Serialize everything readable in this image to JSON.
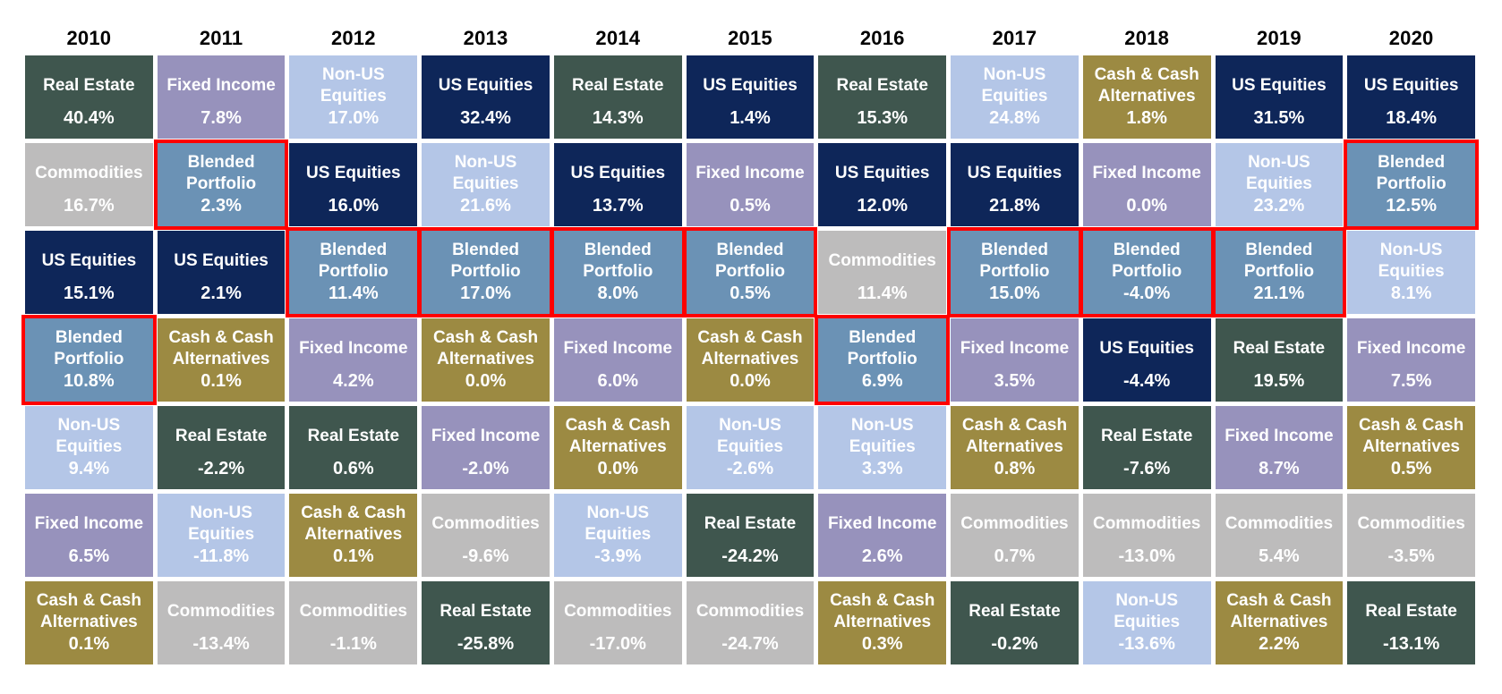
{
  "chart_data": {
    "type": "table",
    "subtype": "asset-class-returns-quilt",
    "title": "",
    "legend_position": "none",
    "grid": "cells-with-white-gaps",
    "highlight_color": "#FF0000",
    "highlight_meaning": "Blended Portfolio cells outlined in red",
    "text_color": "#FFFFFF",
    "year_label_color": "#000000",
    "asset_colors": {
      "real_estate": "#3F564E",
      "fixed_income": "#9792BC",
      "non_us_equities": "#B4C6E7",
      "us_equities": "#0E2659",
      "commodities": "#BDBCBC",
      "cash": "#9C8A42",
      "blended": "#6B92B5"
    },
    "years": [
      "2010",
      "2011",
      "2012",
      "2013",
      "2014",
      "2015",
      "2016",
      "2017",
      "2018",
      "2019",
      "2020"
    ],
    "columns": [
      {
        "year": "2010",
        "cells": [
          {
            "asset": "real_estate",
            "label": "Real Estate",
            "value": "40.4%",
            "highlight": false
          },
          {
            "asset": "commodities",
            "label": "Commodities",
            "value": "16.7%",
            "highlight": false
          },
          {
            "asset": "us_equities",
            "label": "US Equities",
            "value": "15.1%",
            "highlight": false
          },
          {
            "asset": "blended",
            "label": "Blended Portfolio",
            "value": "10.8%",
            "highlight": true
          },
          {
            "asset": "non_us_equities",
            "label": "Non-US Equities",
            "value": "9.4%",
            "highlight": false
          },
          {
            "asset": "fixed_income",
            "label": "Fixed Income",
            "value": "6.5%",
            "highlight": false
          },
          {
            "asset": "cash",
            "label": "Cash & Cash Alternatives",
            "value": "0.1%",
            "highlight": false
          }
        ]
      },
      {
        "year": "2011",
        "cells": [
          {
            "asset": "fixed_income",
            "label": "Fixed Income",
            "value": "7.8%",
            "highlight": false
          },
          {
            "asset": "blended",
            "label": "Blended Portfolio",
            "value": "2.3%",
            "highlight": true
          },
          {
            "asset": "us_equities",
            "label": "US Equities",
            "value": "2.1%",
            "highlight": false
          },
          {
            "asset": "cash",
            "label": "Cash & Cash Alternatives",
            "value": "0.1%",
            "highlight": false
          },
          {
            "asset": "real_estate",
            "label": "Real Estate",
            "value": "-2.2%",
            "highlight": false
          },
          {
            "asset": "non_us_equities",
            "label": "Non-US Equities",
            "value": "-11.8%",
            "highlight": false
          },
          {
            "asset": "commodities",
            "label": "Commodities",
            "value": "-13.4%",
            "highlight": false
          }
        ]
      },
      {
        "year": "2012",
        "cells": [
          {
            "asset": "non_us_equities",
            "label": "Non-US Equities",
            "value": "17.0%",
            "highlight": false
          },
          {
            "asset": "us_equities",
            "label": "US Equities",
            "value": "16.0%",
            "highlight": false
          },
          {
            "asset": "blended",
            "label": "Blended Portfolio",
            "value": "11.4%",
            "highlight": true
          },
          {
            "asset": "fixed_income",
            "label": "Fixed Income",
            "value": "4.2%",
            "highlight": false
          },
          {
            "asset": "real_estate",
            "label": "Real Estate",
            "value": "0.6%",
            "highlight": false
          },
          {
            "asset": "cash",
            "label": "Cash & Cash Alternatives",
            "value": "0.1%",
            "highlight": false
          },
          {
            "asset": "commodities",
            "label": "Commodities",
            "value": "-1.1%",
            "highlight": false
          }
        ]
      },
      {
        "year": "2013",
        "cells": [
          {
            "asset": "us_equities",
            "label": "US Equities",
            "value": "32.4%",
            "highlight": false
          },
          {
            "asset": "non_us_equities",
            "label": "Non-US Equities",
            "value": "21.6%",
            "highlight": false
          },
          {
            "asset": "blended",
            "label": "Blended Portfolio",
            "value": "17.0%",
            "highlight": true
          },
          {
            "asset": "cash",
            "label": "Cash & Cash Alternatives",
            "value": "0.0%",
            "highlight": false
          },
          {
            "asset": "fixed_income",
            "label": "Fixed Income",
            "value": "-2.0%",
            "highlight": false
          },
          {
            "asset": "commodities",
            "label": "Commodities",
            "value": "-9.6%",
            "highlight": false
          },
          {
            "asset": "real_estate",
            "label": "Real Estate",
            "value": "-25.8%",
            "highlight": false
          }
        ]
      },
      {
        "year": "2014",
        "cells": [
          {
            "asset": "real_estate",
            "label": "Real Estate",
            "value": "14.3%",
            "highlight": false
          },
          {
            "asset": "us_equities",
            "label": "US Equities",
            "value": "13.7%",
            "highlight": false
          },
          {
            "asset": "blended",
            "label": "Blended Portfolio",
            "value": "8.0%",
            "highlight": true
          },
          {
            "asset": "fixed_income",
            "label": "Fixed Income",
            "value": "6.0%",
            "highlight": false
          },
          {
            "asset": "cash",
            "label": "Cash & Cash Alternatives",
            "value": "0.0%",
            "highlight": false
          },
          {
            "asset": "non_us_equities",
            "label": "Non-US Equities",
            "value": "-3.9%",
            "highlight": false
          },
          {
            "asset": "commodities",
            "label": "Commodities",
            "value": "-17.0%",
            "highlight": false
          }
        ]
      },
      {
        "year": "2015",
        "cells": [
          {
            "asset": "us_equities",
            "label": "US Equities",
            "value": "1.4%",
            "highlight": false
          },
          {
            "asset": "fixed_income",
            "label": "Fixed Income",
            "value": "0.5%",
            "highlight": false
          },
          {
            "asset": "blended",
            "label": "Blended Portfolio",
            "value": "0.5%",
            "highlight": true
          },
          {
            "asset": "cash",
            "label": "Cash & Cash Alternatives",
            "value": "0.0%",
            "highlight": false
          },
          {
            "asset": "non_us_equities",
            "label": "Non-US Equities",
            "value": "-2.6%",
            "highlight": false
          },
          {
            "asset": "real_estate",
            "label": "Real Estate",
            "value": "-24.2%",
            "highlight": false
          },
          {
            "asset": "commodities",
            "label": "Commodities",
            "value": "-24.7%",
            "highlight": false
          }
        ]
      },
      {
        "year": "2016",
        "cells": [
          {
            "asset": "real_estate",
            "label": "Real Estate",
            "value": "15.3%",
            "highlight": false
          },
          {
            "asset": "us_equities",
            "label": "US Equities",
            "value": "12.0%",
            "highlight": false
          },
          {
            "asset": "commodities",
            "label": "Commodities",
            "value": "11.4%",
            "highlight": false
          },
          {
            "asset": "blended",
            "label": "Blended Portfolio",
            "value": "6.9%",
            "highlight": true
          },
          {
            "asset": "non_us_equities",
            "label": "Non-US Equities",
            "value": "3.3%",
            "highlight": false
          },
          {
            "asset": "fixed_income",
            "label": "Fixed Income",
            "value": "2.6%",
            "highlight": false
          },
          {
            "asset": "cash",
            "label": "Cash & Cash Alternatives",
            "value": "0.3%",
            "highlight": false
          }
        ]
      },
      {
        "year": "2017",
        "cells": [
          {
            "asset": "non_us_equities",
            "label": "Non-US Equities",
            "value": "24.8%",
            "highlight": false
          },
          {
            "asset": "us_equities",
            "label": "US Equities",
            "value": "21.8%",
            "highlight": false
          },
          {
            "asset": "blended",
            "label": "Blended Portfolio",
            "value": "15.0%",
            "highlight": true
          },
          {
            "asset": "fixed_income",
            "label": "Fixed Income",
            "value": "3.5%",
            "highlight": false
          },
          {
            "asset": "cash",
            "label": "Cash & Cash Alternatives",
            "value": "0.8%",
            "highlight": false
          },
          {
            "asset": "commodities",
            "label": "Commodities",
            "value": "0.7%",
            "highlight": false
          },
          {
            "asset": "real_estate",
            "label": "Real Estate",
            "value": "-0.2%",
            "highlight": false
          }
        ]
      },
      {
        "year": "2018",
        "cells": [
          {
            "asset": "cash",
            "label": "Cash & Cash Alternatives",
            "value": "1.8%",
            "highlight": false
          },
          {
            "asset": "fixed_income",
            "label": "Fixed Income",
            "value": "0.0%",
            "highlight": false
          },
          {
            "asset": "blended",
            "label": "Blended Portfolio",
            "value": "-4.0%",
            "highlight": true
          },
          {
            "asset": "us_equities",
            "label": "US Equities",
            "value": "-4.4%",
            "highlight": false
          },
          {
            "asset": "real_estate",
            "label": "Real Estate",
            "value": "-7.6%",
            "highlight": false
          },
          {
            "asset": "commodities",
            "label": "Commodities",
            "value": "-13.0%",
            "highlight": false
          },
          {
            "asset": "non_us_equities",
            "label": "Non-US Equities",
            "value": "-13.6%",
            "highlight": false
          }
        ]
      },
      {
        "year": "2019",
        "cells": [
          {
            "asset": "us_equities",
            "label": "US Equities",
            "value": "31.5%",
            "highlight": false
          },
          {
            "asset": "non_us_equities",
            "label": "Non-US Equities",
            "value": "23.2%",
            "highlight": false
          },
          {
            "asset": "blended",
            "label": "Blended Portfolio",
            "value": "21.1%",
            "highlight": true
          },
          {
            "asset": "real_estate",
            "label": "Real Estate",
            "value": "19.5%",
            "highlight": false
          },
          {
            "asset": "fixed_income",
            "label": "Fixed Income",
            "value": "8.7%",
            "highlight": false
          },
          {
            "asset": "commodities",
            "label": "Commodities",
            "value": "5.4%",
            "highlight": false
          },
          {
            "asset": "cash",
            "label": "Cash & Cash Alternatives",
            "value": "2.2%",
            "highlight": false
          }
        ]
      },
      {
        "year": "2020",
        "cells": [
          {
            "asset": "us_equities",
            "label": "US Equities",
            "value": "18.4%",
            "highlight": false
          },
          {
            "asset": "blended",
            "label": "Blended Portfolio",
            "value": "12.5%",
            "highlight": true
          },
          {
            "asset": "non_us_equities",
            "label": "Non-US Equities",
            "value": "8.1%",
            "highlight": false
          },
          {
            "asset": "fixed_income",
            "label": "Fixed Income",
            "value": "7.5%",
            "highlight": false
          },
          {
            "asset": "cash",
            "label": "Cash & Cash Alternatives",
            "value": "0.5%",
            "highlight": false
          },
          {
            "asset": "commodities",
            "label": "Commodities",
            "value": "-3.5%",
            "highlight": false
          },
          {
            "asset": "real_estate",
            "label": "Real Estate",
            "value": "-13.1%",
            "highlight": false
          }
        ]
      }
    ]
  }
}
